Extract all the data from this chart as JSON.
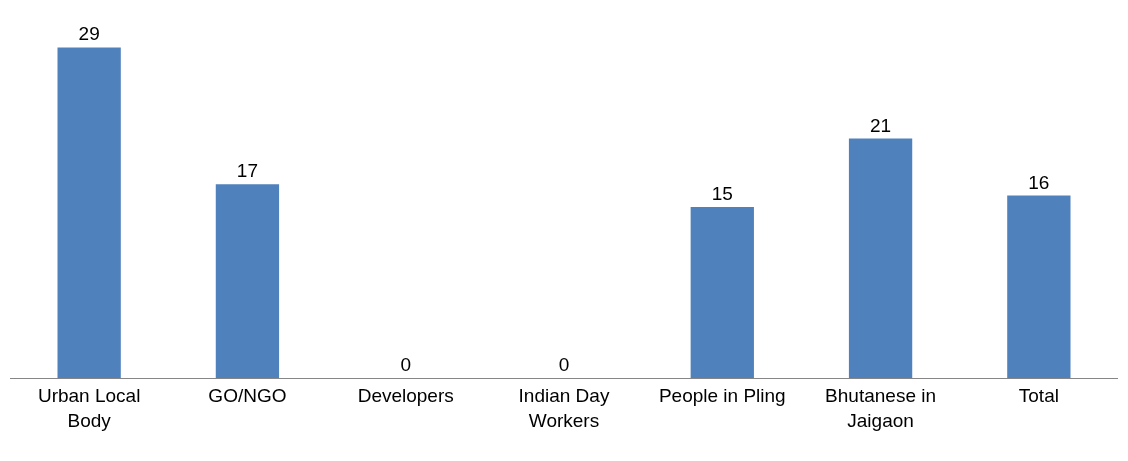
{
  "chart_data": {
    "type": "bar",
    "categories": [
      "Urban Local Body",
      "GO/NGO",
      "Developers",
      "Indian Day Workers",
      "People in Pling",
      "Bhutanese in Jaigaon",
      "Total"
    ],
    "values": [
      29,
      17,
      0,
      0,
      15,
      21,
      16
    ],
    "color": "#4f81bd",
    "data_labels": true
  }
}
